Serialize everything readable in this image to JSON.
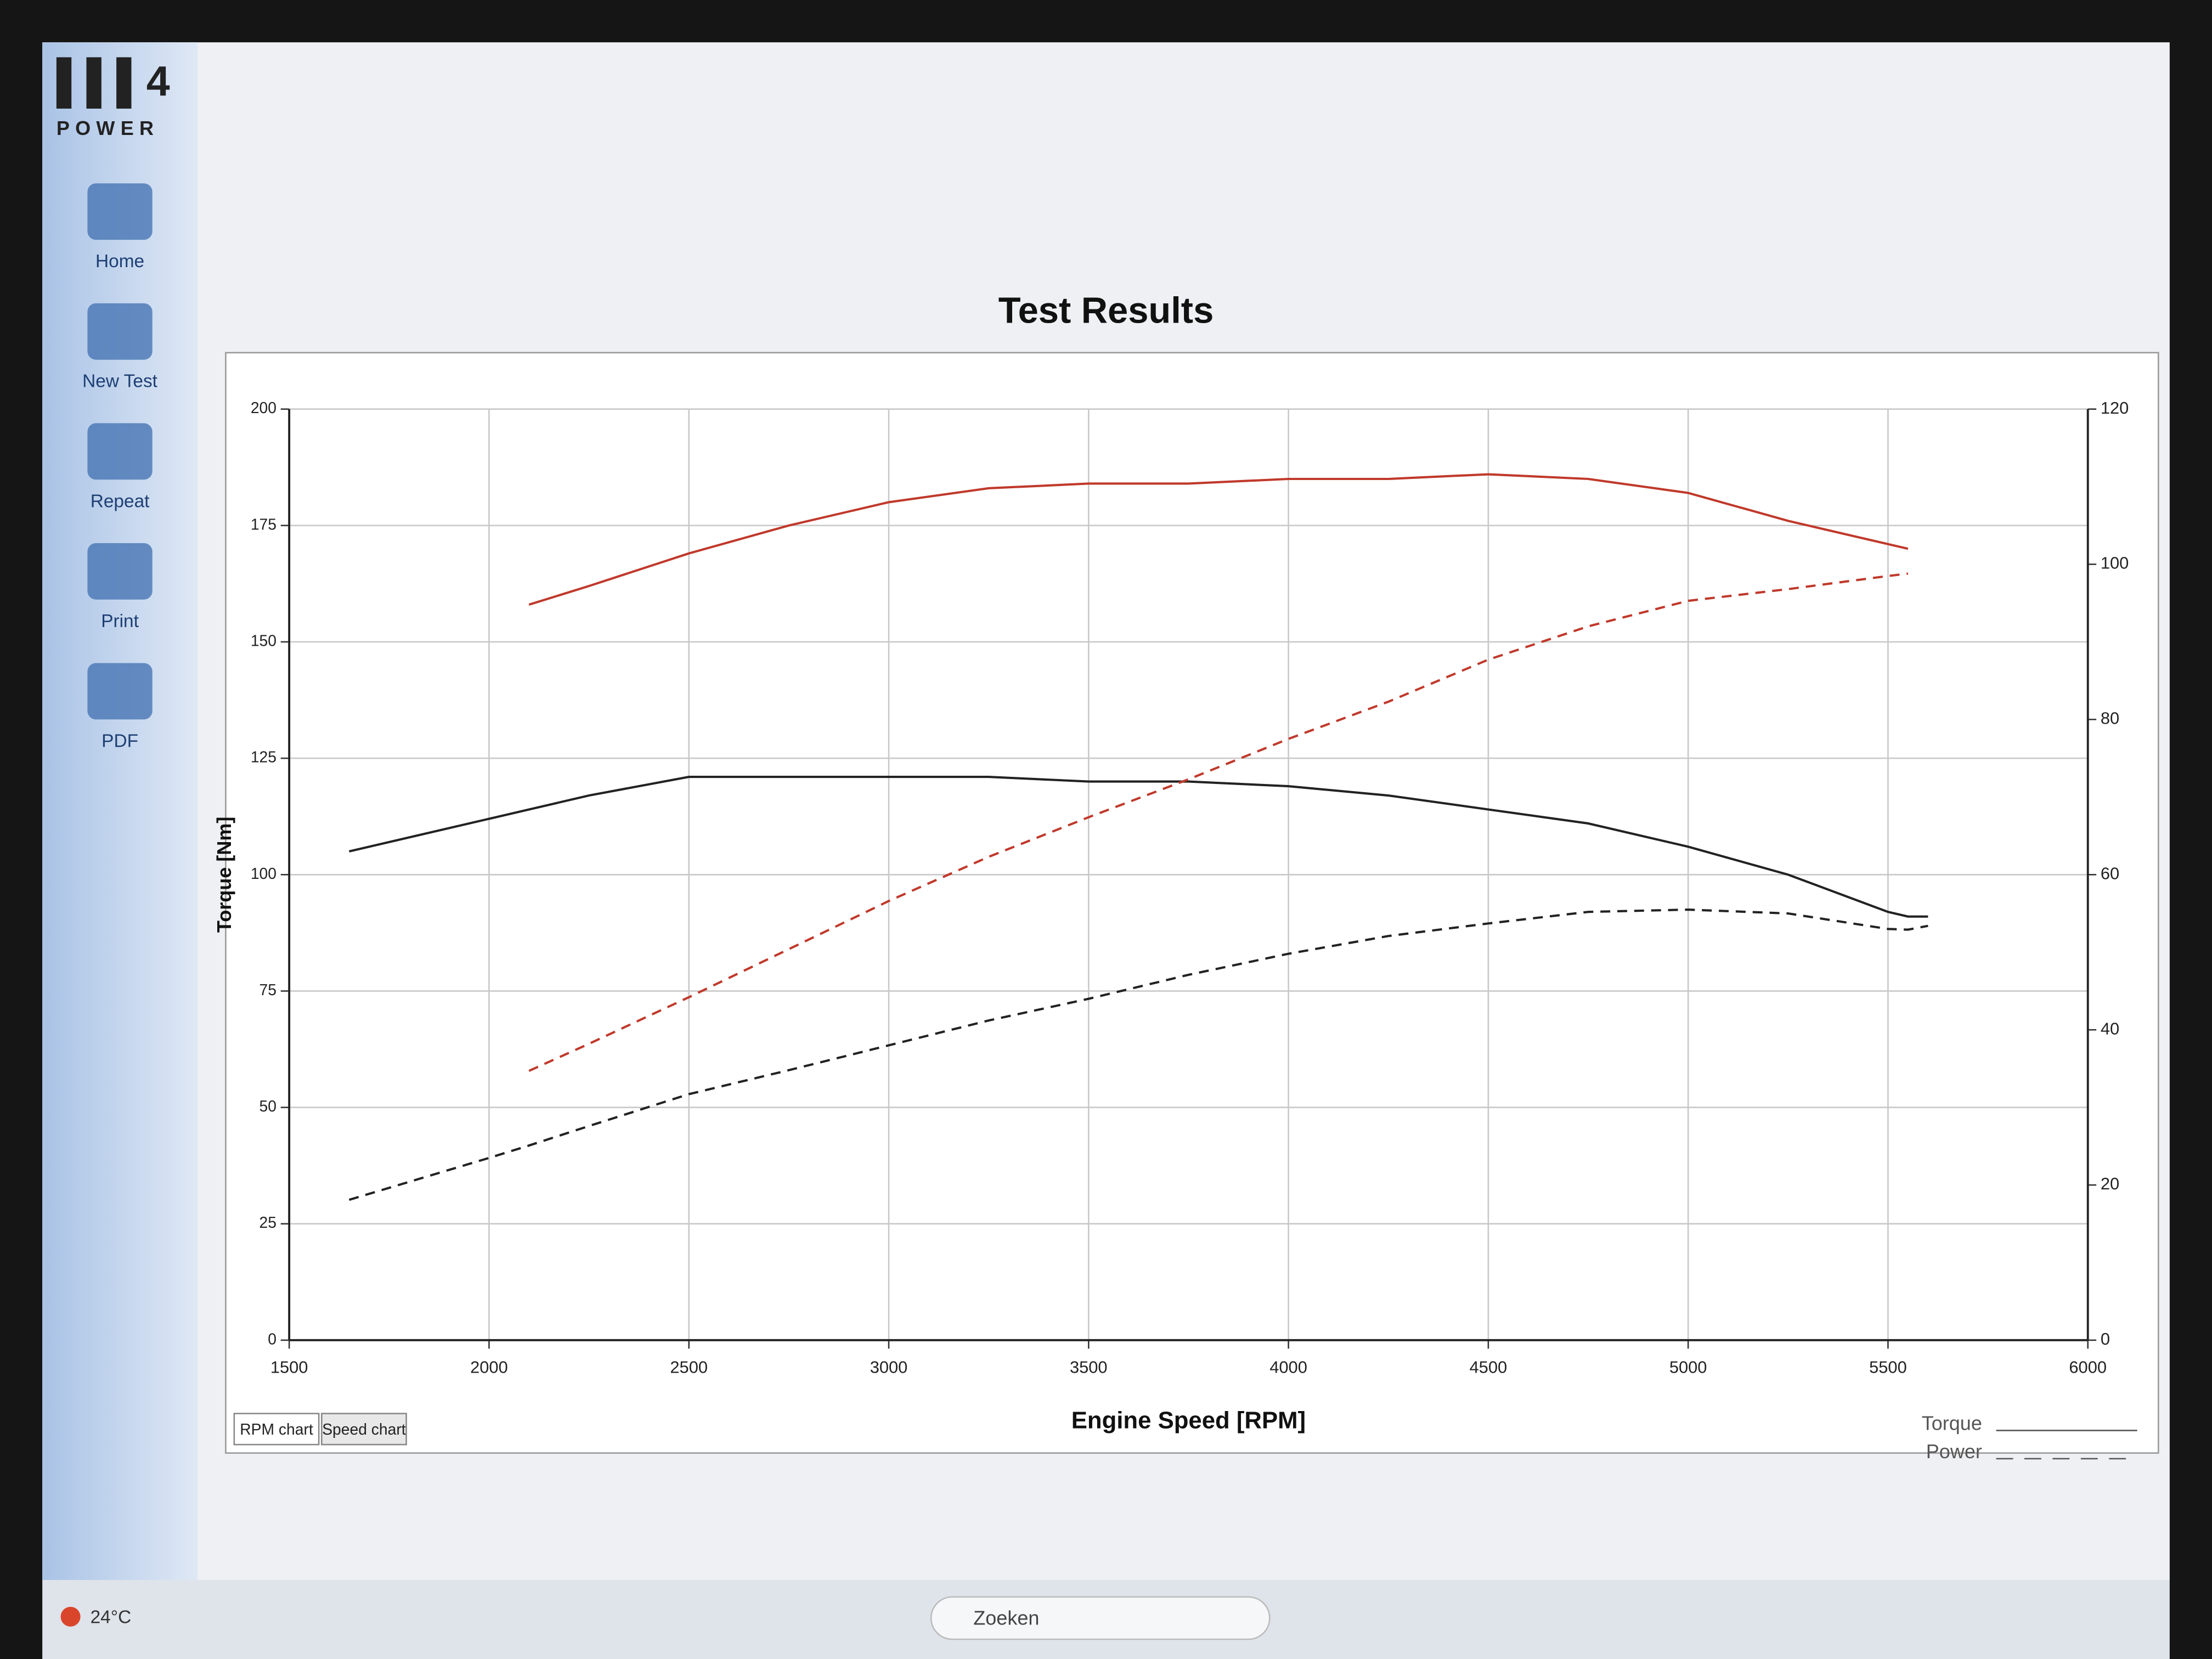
{
  "app": {
    "logo": "POWER",
    "buttons": [
      "Home",
      "New Test",
      "Repeat",
      "Print",
      "PDF"
    ],
    "tabs": [
      "RPM chart",
      "Speed chart"
    ]
  },
  "taskbar": {
    "weather": "24°C",
    "search": "Zoeken"
  },
  "chart_data": {
    "type": "line",
    "title": "Test Results",
    "x_label": "Engine Speed [RPM]",
    "y_label": "Torque [Nm]",
    "x": [
      1650,
      2000,
      2100,
      2250,
      2500,
      2750,
      3000,
      3250,
      3500,
      3750,
      4000,
      4250,
      4500,
      4750,
      5000,
      5250,
      5500,
      5550,
      5600
    ],
    "series": [
      {
        "color": "#c0392b",
        "dash": false,
        "axis": "y",
        "values": [
          null,
          null,
          158,
          162,
          169,
          175,
          180,
          183,
          184,
          184,
          185,
          185,
          186,
          185,
          182,
          176,
          171,
          170,
          null
        ]
      },
      {
        "color": "#222222",
        "dash": false,
        "axis": "y",
        "values": [
          105,
          112,
          114,
          117,
          121,
          121,
          121,
          121,
          120,
          120,
          119,
          117,
          114,
          111,
          106,
          100,
          92,
          91,
          91
        ]
      },
      {
        "color": "#c0392b",
        "dash": true,
        "axis": "y2",
        "values": [
          null,
          null,
          34.7,
          38.2,
          44.2,
          50.4,
          56.6,
          62.3,
          67.4,
          72.3,
          77.5,
          82.3,
          87.7,
          92.0,
          95.3,
          96.8,
          98.5,
          98.8,
          null
        ]
      },
      {
        "color": "#222222",
        "dash": true,
        "axis": "y2",
        "values": [
          18.1,
          23.5,
          25.1,
          27.6,
          31.7,
          34.8,
          38.0,
          41.2,
          44.0,
          47.1,
          49.8,
          52.1,
          53.7,
          55.2,
          55.5,
          55.0,
          53.0,
          52.9,
          53.4
        ]
      }
    ],
    "legend": [
      {
        "label": "Torque",
        "dash": false
      },
      {
        "label": "Power",
        "dash": true
      }
    ],
    "xlim": [
      1500,
      6000
    ],
    "xticks": [
      1500,
      2000,
      2500,
      3000,
      3500,
      4000,
      4500,
      5000,
      5500,
      6000
    ],
    "ylim": [
      0,
      200
    ],
    "yticks": [
      0,
      25,
      50,
      75,
      100,
      125,
      150,
      175,
      200
    ],
    "y2lim": [
      0,
      120
    ],
    "y2ticks": [
      0,
      20,
      40,
      60,
      80,
      100,
      120
    ],
    "grid": true
  }
}
